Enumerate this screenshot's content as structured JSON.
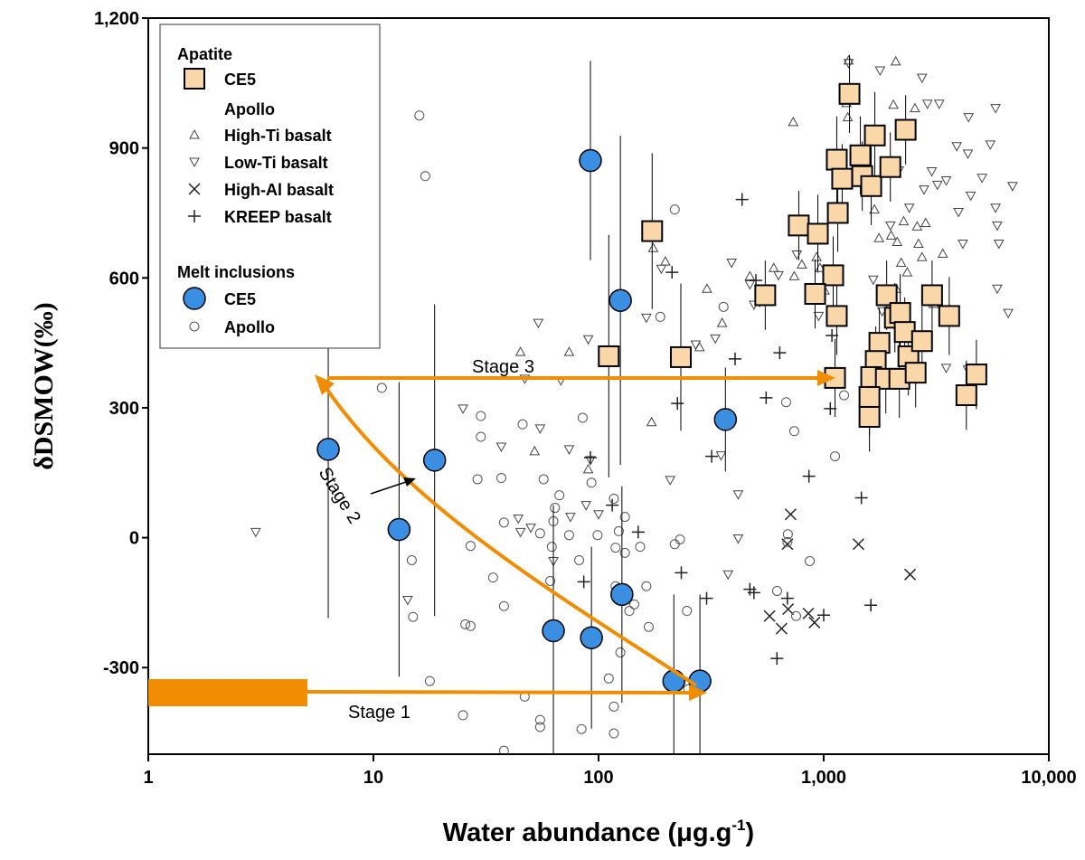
{
  "chart_data": {
    "type": "scatter",
    "xlabel": [
      "Water abundance (μg.g",
      "-1",
      ")"
    ],
    "ylabel": "δDSMOW(‰)",
    "xscale": "log",
    "xlim": [
      1,
      10000
    ],
    "xticks": [
      1,
      10,
      100,
      {
        "value": 1000,
        "label": "1,000"
      },
      {
        "value": 10000,
        "label": "10,000"
      }
    ],
    "ylim": [
      -500,
      1200
    ],
    "yticks": [
      -300,
      0,
      300,
      600,
      900,
      {
        "value": 1200,
        "label": "1,200"
      }
    ],
    "legend_headings": [
      "Apatite",
      "Apollo",
      "Melt inclusions"
    ],
    "annotations": [
      "Stage 1",
      "Stage 2",
      "Stage 3"
    ],
    "series": [
      {
        "name": "CE5",
        "marker": "square",
        "color": "#fad7a8",
        "x": [
          173,
          111,
          232,
          550,
          1302,
          775,
          942,
          1143,
          1208,
          1687,
          2312,
          1455,
          1483,
          1626,
          1977,
          1155,
          1102,
          1143,
          916,
          1123,
          1904,
          2071,
          2187,
          1768,
          1703,
          1626,
          1888,
          2168,
          2291,
          2378,
          2561,
          2734,
          3030,
          3610,
          1597,
          1597,
          4303,
          4767
        ],
        "values": [
          708,
          419,
          417,
          560,
          1025,
          721,
          702,
          873,
          829,
          929,
          942,
          883,
          835,
          812,
          856,
          750,
          606,
          512,
          563,
          369,
          560,
          508,
          519,
          450,
          408,
          371,
          367,
          367,
          475,
          419,
          381,
          454,
          560,
          512,
          325,
          279,
          329,
          377
        ],
        "yerr": [
          180,
          280,
          170,
          80,
          90,
          80,
          90,
          100,
          80,
          100,
          80,
          90,
          80,
          90,
          80,
          90,
          90,
          90,
          80,
          90,
          80,
          80,
          90,
          80,
          80,
          90,
          80,
          90,
          80,
          90,
          80,
          80,
          80,
          90,
          90,
          80,
          80,
          80
        ]
      },
      {
        "name": "High-Ti basalt",
        "marker": "tri-up",
        "color": "#444444",
        "x": [
          1279,
          1262,
          1290,
          2090,
          2040,
          2542,
          732,
          1484,
          1680,
          2266,
          2601,
          2836,
          1993,
          2120,
          2637,
          930,
          800,
          963,
          1010,
          740,
          1760,
          2208,
          2734,
          2100,
          3380,
          600,
          470,
          354,
          303,
          281,
          218,
          172,
          198,
          175,
          90,
          52,
          45,
          74,
          2350,
          3075
        ],
        "values": [
          971,
          1004,
          1102,
          1100,
          1000,
          992,
          960,
          825,
          758,
          731,
          719,
          727,
          698,
          683,
          679,
          648,
          631,
          623,
          571,
          604,
          692,
          635,
          648,
          575,
          656,
          623,
          604,
          496,
          575,
          440,
          425,
          267,
          638,
          669,
          158,
          200,
          429,
          429,
          613,
          540
        ]
      },
      {
        "name": "Low-Ti basalt",
        "marker": "tri-down",
        "color": "#444444",
        "x": [
          1290,
          1780,
          2734,
          2890,
          3260,
          4400,
          5800,
          3900,
          4370,
          5500,
          5800,
          6900,
          5900,
          6000,
          5900,
          6600,
          3500,
          3200,
          2158,
          2400,
          1980,
          2790,
          3020,
          4500,
          5050,
          3970,
          4150,
          1660,
          1820,
          950,
          760,
          630,
          520,
          470,
          390,
          490,
          330,
          190,
          270,
          163,
          90,
          68,
          47,
          54,
          25,
          37,
          55,
          74,
          92,
          88,
          50,
          45,
          44,
          63,
          75,
          100,
          208,
          417,
          376,
          417,
          350,
          14.2,
          3.0,
          4370,
          3500
        ],
        "values": [
          1096,
          1079,
          1062,
          1002,
          1002,
          971,
          992,
          904,
          887,
          908,
          762,
          812,
          721,
          679,
          575,
          519,
          825,
          815,
          848,
          762,
          721,
          804,
          846,
          790,
          831,
          752,
          679,
          596,
          523,
          512,
          654,
          606,
          544,
          585,
          635,
          538,
          460,
          621,
          446,
          508,
          458,
          363,
          367,
          496,
          298,
          210,
          252,
          204,
          179,
          75,
          23,
          13,
          44,
          -54,
          48,
          54,
          133,
          -2,
          -85,
          100,
          190,
          -144,
          13,
          388,
          392
        ]
      },
      {
        "name": "High-Al basalt",
        "marker": "x",
        "color": "#222222",
        "x": [
          713,
          690,
          1427,
          2420,
          575,
          855,
          695,
          650,
          910
        ],
        "values": [
          54,
          -15,
          -15,
          -85,
          -181,
          -175,
          -165,
          -210,
          -196
        ]
      },
      {
        "name": "KREEP basalt",
        "marker": "plus",
        "color": "#222222",
        "x": [
          434,
          500,
          638,
          404,
          212,
          224,
          318,
          92,
          115,
          150,
          233,
          302,
          470,
          490,
          620,
          690,
          555,
          860,
          1070,
          1470,
          1620,
          1088,
          1000,
          86
        ],
        "values": [
          781,
          594,
          427,
          413,
          613,
          310,
          188,
          185,
          75,
          13,
          -81,
          -140,
          -119,
          -127,
          -279,
          -140,
          323,
          142,
          298,
          92,
          -156,
          467,
          -179,
          -102
        ]
      },
      {
        "name": "CE5",
        "marker": "circle-big",
        "color": "#3b8fe3",
        "x": [
          6.3,
          13,
          18.7,
          92,
          125,
          366,
          63,
          93,
          127,
          216,
          282
        ],
        "values": [
          204,
          19,
          179,
          871,
          548,
          273,
          -215,
          -231,
          -131,
          -331,
          -331
        ],
        "yerr": [
          390,
          340,
          360,
          230,
          380,
          120,
          290,
          210,
          250,
          200,
          200
        ]
      },
      {
        "name": "Apollo",
        "marker": "circle-small",
        "color": "#555555",
        "x": [
          16,
          17,
          10.9,
          30,
          30,
          46,
          37,
          29,
          85,
          38,
          27,
          34,
          38,
          14.8,
          15,
          25.6,
          27,
          17.8,
          25,
          38,
          47,
          55,
          55,
          57,
          64,
          67,
          63,
          55,
          62,
          61,
          74,
          82,
          99,
          93,
          117,
          131,
          123,
          119,
          131,
          125,
          111,
          117,
          117,
          84,
          119,
          153,
          163,
          144,
          137,
          167,
          218,
          230,
          218,
          188,
          250,
          247,
          359,
          681,
          740,
          693,
          690,
          621,
          754,
          867,
          1123,
          1232
        ],
        "values": [
          975,
          835,
          346,
          281,
          233,
          262,
          138,
          135,
          277,
          35,
          -19,
          -92,
          -158,
          -52,
          -183,
          -200,
          -204,
          -331,
          -410,
          -492,
          -367,
          -421,
          -437,
          135,
          69,
          98,
          38,
          10,
          -21,
          -100,
          6,
          -52,
          6,
          127,
          90,
          48,
          15,
          -23,
          -35,
          -265,
          -325,
          -390,
          -452,
          -442,
          -112,
          -21,
          -112,
          -154,
          -169,
          -206,
          -15,
          -4,
          758,
          510,
          -350,
          -169,
          533,
          313,
          246,
          8,
          -10,
          -123,
          -181,
          -54,
          188,
          329
        ]
      }
    ]
  }
}
